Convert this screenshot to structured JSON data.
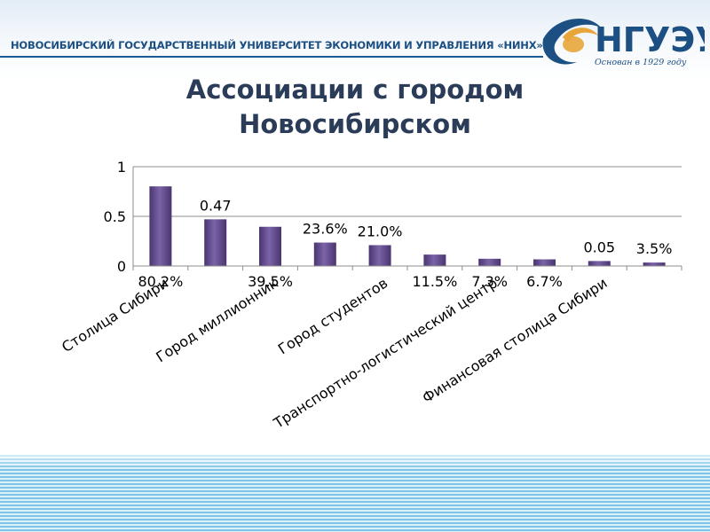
{
  "header": {
    "university_name": "НОВОСИБИРСКИЙ ГОСУДАРСТВЕННЫЙ УНИВЕРСИТЕТ ЭКОНОМИКИ И УПРАВЛЕНИЯ «НИНХ»",
    "logo_tagline": "Основан в 1929 году",
    "logo_text": "НГУЭУ",
    "logo_icon": "university-emblem-icon"
  },
  "slide": {
    "title_line1": "Ассоциации с городом",
    "title_line2": "Новосибирском"
  },
  "colors": {
    "bar": "#5f4a8c",
    "bar_dark": "#4a3570",
    "title": "#2b3c59",
    "header": "#1c4f82",
    "stripes": "#7cc4e6"
  },
  "chart_data": {
    "type": "bar",
    "categories": [
      "Столица Сибири",
      "",
      "Город миллионник",
      "",
      "Город студентов",
      "",
      "Транспортно-логистический центр",
      "",
      "Финансовая столица Сибири",
      ""
    ],
    "values": [
      0.802,
      0.47,
      0.395,
      0.236,
      0.21,
      0.115,
      0.073,
      0.067,
      0.05,
      0.035
    ],
    "data_labels": [
      "80.2%",
      "0.47",
      "39.5%",
      "23.6%",
      "21.0%",
      "11.5%",
      "7.3%",
      "6.7%",
      "0.05",
      "3.5%"
    ],
    "y_ticks": [
      "0",
      "0.5",
      "1"
    ],
    "ylim": [
      0,
      1
    ],
    "grid": true,
    "legend": "none",
    "title": "",
    "xlabel": "",
    "ylabel": ""
  }
}
